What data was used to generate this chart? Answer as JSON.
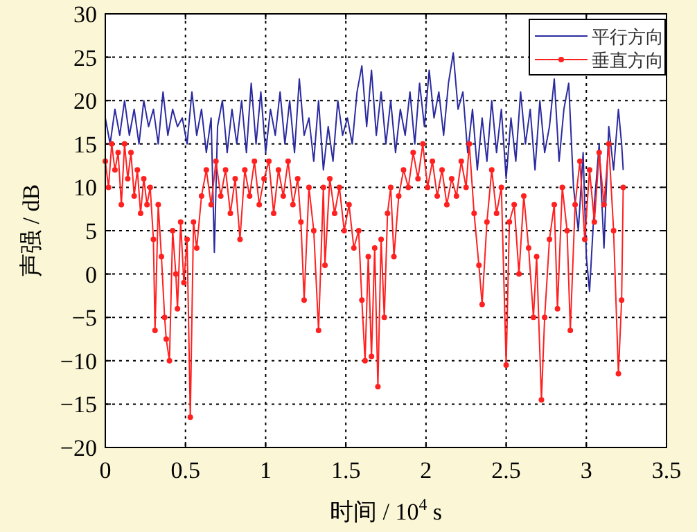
{
  "chart_data": {
    "type": "line",
    "xlabel": "时间 / 10$^{4}$ s",
    "ylabel": "声强 / dB",
    "xlim": [
      0,
      3.5
    ],
    "ylim": [
      -20,
      30
    ],
    "xticks": [
      0,
      0.5,
      1,
      1.5,
      2,
      2.5,
      3,
      3.5
    ],
    "yticks": [
      -20,
      -15,
      -10,
      -5,
      0,
      5,
      10,
      15,
      20,
      25,
      30
    ],
    "grid": true,
    "legend": "top right",
    "line_style": "solid",
    "series": [
      {
        "name": "平行方向",
        "color": "#2b2ba0",
        "marker": "none",
        "x": [
          0,
          0.03,
          0.06,
          0.09,
          0.12,
          0.15,
          0.18,
          0.21,
          0.24,
          0.27,
          0.3,
          0.33,
          0.36,
          0.39,
          0.42,
          0.45,
          0.48,
          0.51,
          0.54,
          0.57,
          0.6,
          0.63,
          0.66,
          0.68,
          0.7,
          0.73,
          0.76,
          0.79,
          0.82,
          0.85,
          0.88,
          0.91,
          0.94,
          0.97,
          1.0,
          1.03,
          1.06,
          1.09,
          1.12,
          1.15,
          1.18,
          1.21,
          1.24,
          1.27,
          1.3,
          1.33,
          1.36,
          1.39,
          1.42,
          1.45,
          1.48,
          1.51,
          1.54,
          1.57,
          1.6,
          1.63,
          1.66,
          1.69,
          1.72,
          1.75,
          1.78,
          1.81,
          1.84,
          1.87,
          1.9,
          1.93,
          1.96,
          1.99,
          2.02,
          2.05,
          2.08,
          2.11,
          2.14,
          2.17,
          2.2,
          2.23,
          2.26,
          2.29,
          2.32,
          2.35,
          2.38,
          2.41,
          2.44,
          2.47,
          2.5,
          2.53,
          2.56,
          2.59,
          2.62,
          2.65,
          2.68,
          2.71,
          2.74,
          2.77,
          2.8,
          2.83,
          2.86,
          2.89,
          2.92,
          2.95,
          2.98,
          3.0,
          3.02,
          3.05,
          3.08,
          3.11,
          3.14,
          3.17,
          3.2,
          3.22,
          3.23
        ],
        "values": [
          18,
          15,
          19,
          16,
          20,
          16,
          19,
          15,
          20,
          17,
          19,
          15,
          21,
          16,
          19,
          17,
          18,
          15,
          21,
          16,
          19,
          14,
          18,
          2.5,
          17,
          20,
          14,
          19,
          15,
          20,
          14,
          22,
          15,
          21,
          14,
          19,
          16,
          21,
          15,
          20,
          14,
          22.5,
          16,
          18,
          13,
          20,
          12,
          17,
          13,
          20,
          16,
          18,
          15,
          21,
          24,
          17,
          23.5,
          16,
          21,
          15,
          20,
          14,
          19,
          16,
          21,
          15,
          22,
          17,
          23.5,
          18,
          21,
          16,
          22,
          25.5,
          19,
          21,
          14,
          19,
          12,
          18,
          13,
          20,
          14,
          19,
          11,
          18,
          13,
          21,
          15,
          19,
          12,
          20,
          14,
          17,
          22.5,
          13,
          19,
          22,
          10,
          5,
          14,
          2,
          -2,
          8,
          15,
          3,
          17,
          12,
          19,
          15,
          12
        ]
      },
      {
        "name": "垂直方向",
        "color": "#ff2020",
        "marker": "circle",
        "x": [
          0,
          0.02,
          0.04,
          0.06,
          0.08,
          0.1,
          0.12,
          0.14,
          0.16,
          0.18,
          0.2,
          0.22,
          0.24,
          0.26,
          0.28,
          0.3,
          0.31,
          0.33,
          0.35,
          0.37,
          0.38,
          0.4,
          0.42,
          0.44,
          0.45,
          0.47,
          0.49,
          0.51,
          0.53,
          0.55,
          0.57,
          0.6,
          0.63,
          0.66,
          0.69,
          0.72,
          0.75,
          0.78,
          0.81,
          0.84,
          0.87,
          0.9,
          0.93,
          0.96,
          0.99,
          1.02,
          1.05,
          1.08,
          1.11,
          1.14,
          1.17,
          1.2,
          1.22,
          1.24,
          1.27,
          1.3,
          1.33,
          1.36,
          1.37,
          1.4,
          1.43,
          1.46,
          1.49,
          1.52,
          1.55,
          1.58,
          1.6,
          1.62,
          1.64,
          1.66,
          1.68,
          1.7,
          1.72,
          1.74,
          1.76,
          1.78,
          1.8,
          1.83,
          1.86,
          1.89,
          1.92,
          1.95,
          1.98,
          2.01,
          2.04,
          2.07,
          2.1,
          2.13,
          2.16,
          2.19,
          2.22,
          2.25,
          2.27,
          2.3,
          2.33,
          2.35,
          2.38,
          2.41,
          2.44,
          2.47,
          2.5,
          2.52,
          2.55,
          2.58,
          2.61,
          2.64,
          2.67,
          2.69,
          2.72,
          2.74,
          2.77,
          2.8,
          2.82,
          2.85,
          2.88,
          2.9,
          2.93,
          2.96,
          2.99,
          3.02,
          3.05,
          3.08,
          3.11,
          3.14,
          3.17,
          3.2,
          3.22,
          3.23
        ],
        "values": [
          13,
          10,
          15,
          12,
          14,
          8,
          15,
          11,
          14,
          9,
          12,
          7,
          11,
          8,
          10,
          4,
          -6.5,
          8,
          2,
          -5,
          -7.5,
          -10,
          5,
          0,
          -4,
          6,
          -1,
          4,
          -16.5,
          6,
          3,
          9,
          12,
          8,
          13,
          9,
          12,
          7,
          11,
          4,
          12,
          9,
          13,
          8,
          11,
          13,
          7,
          12,
          9,
          13,
          8,
          11,
          6,
          -3,
          10,
          5,
          -6.5,
          10,
          1,
          11,
          7,
          10,
          5,
          8,
          3,
          5,
          -3,
          -10,
          2,
          -9.5,
          3,
          -13,
          4,
          -5,
          7,
          10,
          2,
          9,
          12,
          10,
          14,
          11,
          15,
          10,
          13,
          9,
          12,
          8,
          11,
          9,
          13,
          10,
          15,
          7,
          1,
          -3.5,
          6,
          12,
          7,
          10,
          -10.5,
          6,
          8,
          0,
          9,
          3,
          -5,
          2,
          -14.5,
          -5,
          4,
          8,
          -4,
          10,
          5,
          -6.5,
          8,
          13,
          4,
          12,
          6,
          14,
          8,
          15,
          5,
          -11.5,
          -3,
          10
        ]
      }
    ]
  }
}
